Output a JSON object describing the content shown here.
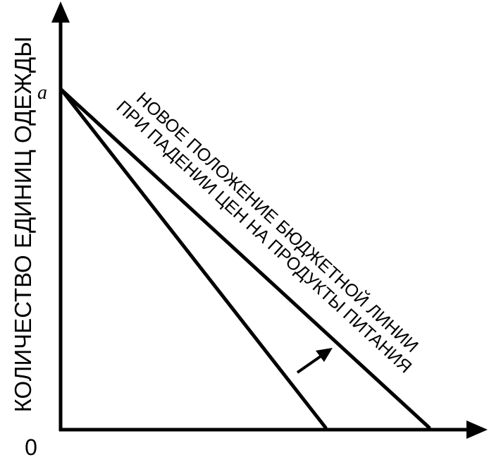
{
  "diagram": {
    "y_axis_label": "КОЛИЧЕСТВО ЕДИНИЦ ОДЕЖДЫ",
    "origin_label": "0",
    "point_a_label": "a",
    "annotation_line1": "НОВОЕ ПОЛОЖЕНИЕ БЮДЖЕТНОЙ ЛИНИИ",
    "annotation_line2": "ПРИ ПАДЕНИИ ЦЕН НА ПРОДУКТЫ ПИТАНИЯ"
  },
  "colors": {
    "ink": "#000000",
    "background": "#ffffff"
  }
}
